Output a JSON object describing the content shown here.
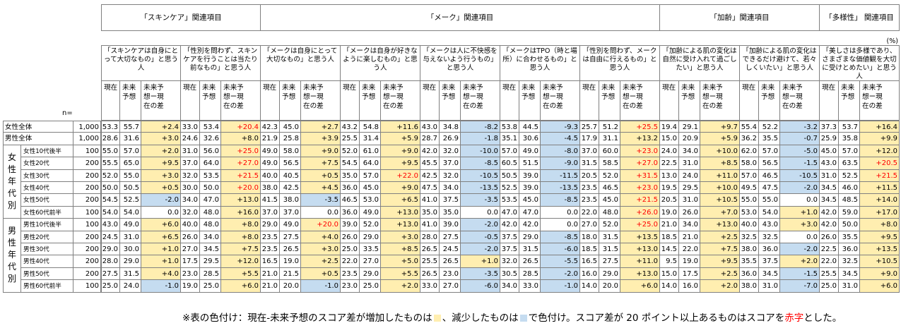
{
  "header": {
    "groups": [
      {
        "label": "「スキンケア」関連項目",
        "span": 2
      },
      {
        "label": "「メーク」関連項目",
        "span": 5
      },
      {
        "label": "「加齢」関連項目",
        "span": 2
      },
      {
        "label": "「多様性」\n関連項目",
        "span": 1
      }
    ],
    "unit_label": "(%)",
    "n_label": "n=",
    "sub_labels": [
      "現在",
      "未来\n予想",
      "未来予\n想ー現\n在の差"
    ]
  },
  "colors": {
    "increase_fill": "#ffeeb0",
    "decrease_fill": "#c5dcf0",
    "highlight_text": "#ff0000",
    "border": "#808080"
  },
  "footnote": {
    "text_before_inc": "※表の色付け：現在-未来予想のスコア差が増加したものは",
    "text_before_dec": "、減少したものは",
    "text_before_red": "で色付け。スコア差が 20 ポイント以上あるものはスコアを",
    "red_word": "赤字",
    "text_end": "とした。"
  },
  "chart_data": {
    "type": "table",
    "title": "",
    "highlight_rule": {
      "increase_color": "#ffeeb0",
      "decrease_color": "#c5dcf0",
      "red_text_threshold": 20
    },
    "items": [
      "「スキンケアは自身にとって大切なもの」と思う人",
      "「性別を問わず、スキンケアを行うことは当たり前なもの」と思う人",
      "「メークは自身にとって大切なもの」と思う人",
      "「メークは自身が好きなように楽しむもの」と思う人",
      "「メークは人に不快感を与えないよう行うもの」と思う人",
      "「メークはTPO（時と場所）に合わせるもの」と思う人",
      "「性別を問わず、メークは自由に行えるもの」と思う人",
      "「加齢による肌の変化は自然に受け入れて過ごしたい」と思う人",
      "「加齢による肌の変化はできるだけ避けて、若々しくいたい」と思う人",
      "「美しさは多様であり、さまざまな価値観を大切に受けとめたい」と思う人"
    ],
    "metrics": [
      "現在",
      "未来予想",
      "未来予想ー現在の差"
    ],
    "groups": [
      {
        "label": "",
        "rows": [
          "女性全体",
          "男性全体"
        ]
      },
      {
        "label": "女性年代別",
        "rows": [
          "女性10代後半",
          "女性20代",
          "女性30代",
          "女性40代",
          "女性50代",
          "女性60代前半"
        ]
      },
      {
        "label": "男性年代別",
        "rows": [
          "男性10代後半",
          "男性20代",
          "男性30代",
          "男性40代",
          "男性50代",
          "男性60代前半"
        ]
      }
    ],
    "rows": [
      {
        "label": "女性全体",
        "n": "1,000",
        "values": [
          [
            53.3,
            55.7,
            2.4
          ],
          [
            33.0,
            53.4,
            20.4
          ],
          [
            42.3,
            45.0,
            2.7
          ],
          [
            43.2,
            54.8,
            11.6
          ],
          [
            43.0,
            34.8,
            -8.2
          ],
          [
            53.8,
            44.5,
            -9.3
          ],
          [
            25.7,
            51.2,
            25.5
          ],
          [
            19.4,
            29.1,
            9.7
          ],
          [
            55.4,
            52.2,
            -3.2
          ],
          [
            37.3,
            53.7,
            16.4
          ]
        ]
      },
      {
        "label": "男性全体",
        "n": "1,000",
        "values": [
          [
            28.6,
            31.6,
            3.0
          ],
          [
            24.6,
            32.6,
            8.0
          ],
          [
            21.9,
            25.8,
            3.9
          ],
          [
            25.5,
            31.4,
            5.9
          ],
          [
            28.7,
            26.9,
            -1.8
          ],
          [
            35.1,
            30.6,
            -4.5
          ],
          [
            17.9,
            31.1,
            13.2
          ],
          [
            15.0,
            20.9,
            5.9
          ],
          [
            36.2,
            35.5,
            -0.7
          ],
          [
            25.9,
            35.8,
            9.9
          ]
        ]
      },
      {
        "label": "女性10代後半",
        "n": "100",
        "values": [
          [
            55.0,
            57.0,
            2.0
          ],
          [
            31.0,
            56.0,
            25.0
          ],
          [
            49.0,
            58.0,
            9.0
          ],
          [
            52.0,
            61.0,
            9.0
          ],
          [
            42.0,
            32.0,
            -10.0
          ],
          [
            57.0,
            49.0,
            -8.0
          ],
          [
            37.0,
            60.0,
            23.0
          ],
          [
            24.0,
            34.0,
            10.0
          ],
          [
            62.0,
            57.0,
            -5.0
          ],
          [
            45.0,
            57.0,
            12.0
          ]
        ]
      },
      {
        "label": "女性20代",
        "n": "200",
        "values": [
          [
            55.5,
            65.0,
            9.5
          ],
          [
            37.0,
            64.0,
            27.0
          ],
          [
            49.0,
            56.5,
            7.5
          ],
          [
            54.5,
            64.0,
            9.5
          ],
          [
            45.5,
            37.0,
            -8.5
          ],
          [
            60.5,
            51.5,
            -9.0
          ],
          [
            31.5,
            58.5,
            27.0
          ],
          [
            22.5,
            31.0,
            8.5
          ],
          [
            58.0,
            56.5,
            -1.5
          ],
          [
            43.0,
            63.5,
            20.5
          ]
        ]
      },
      {
        "label": "女性30代",
        "n": "200",
        "values": [
          [
            52.0,
            55.0,
            3.0
          ],
          [
            32.0,
            53.5,
            21.5
          ],
          [
            40.0,
            40.5,
            0.5
          ],
          [
            35.0,
            57.0,
            22.0
          ],
          [
            42.5,
            32.0,
            -10.5
          ],
          [
            50.5,
            39.0,
            -11.5
          ],
          [
            20.5,
            52.0,
            31.5
          ],
          [
            13.0,
            24.0,
            11.0
          ],
          [
            57.0,
            46.5,
            -10.5
          ],
          [
            31.0,
            52.5,
            21.5
          ]
        ]
      },
      {
        "label": "女性40代",
        "n": "200",
        "values": [
          [
            50.0,
            50.5,
            0.5
          ],
          [
            30.0,
            50.0,
            20.0
          ],
          [
            38.0,
            42.5,
            4.5
          ],
          [
            36.0,
            45.0,
            9.0
          ],
          [
            47.5,
            34.0,
            -13.5
          ],
          [
            52.5,
            39.0,
            -13.5
          ],
          [
            23.5,
            46.5,
            23.0
          ],
          [
            19.5,
            29.5,
            10.0
          ],
          [
            49.5,
            47.5,
            -2.0
          ],
          [
            34.5,
            46.0,
            11.5
          ]
        ]
      },
      {
        "label": "女性50代",
        "n": "200",
        "values": [
          [
            54.5,
            52.5,
            -2.0
          ],
          [
            34.0,
            47.0,
            13.0
          ],
          [
            41.5,
            38.0,
            -3.5
          ],
          [
            46.5,
            53.0,
            6.5
          ],
          [
            41.0,
            37.5,
            -3.5
          ],
          [
            53.5,
            45.0,
            -8.5
          ],
          [
            23.5,
            45.0,
            21.5
          ],
          [
            20.5,
            31.0,
            10.5
          ],
          [
            55.0,
            55.0,
            0.0
          ],
          [
            34.5,
            48.5,
            14.0
          ]
        ]
      },
      {
        "label": "女性60代前半",
        "n": "100",
        "values": [
          [
            54.0,
            54.0,
            0.0
          ],
          [
            32.0,
            48.0,
            16.0
          ],
          [
            37.0,
            37.0,
            0.0
          ],
          [
            36.0,
            49.0,
            13.0
          ],
          [
            35.0,
            35.0,
            0.0
          ],
          [
            47.0,
            47.0,
            0.0
          ],
          [
            22.0,
            48.0,
            26.0
          ],
          [
            19.0,
            26.0,
            7.0
          ],
          [
            53.0,
            54.0,
            1.0
          ],
          [
            42.0,
            59.0,
            17.0
          ]
        ]
      },
      {
        "label": "男性10代後半",
        "n": "100",
        "values": [
          [
            43.0,
            49.0,
            6.0
          ],
          [
            40.0,
            48.0,
            8.0
          ],
          [
            29.0,
            49.0,
            20.0
          ],
          [
            39.0,
            52.0,
            13.0
          ],
          [
            41.0,
            39.0,
            -2.0
          ],
          [
            42.0,
            42.0,
            0.0
          ],
          [
            27.0,
            52.0,
            25.0
          ],
          [
            21.0,
            34.0,
            13.0
          ],
          [
            40.0,
            43.0,
            3.0
          ],
          [
            42.0,
            50.0,
            8.0
          ]
        ]
      },
      {
        "label": "男性20代",
        "n": "200",
        "values": [
          [
            24.5,
            31.0,
            6.5
          ],
          [
            26.0,
            34.0,
            8.0
          ],
          [
            23.5,
            27.5,
            4.0
          ],
          [
            26.0,
            29.0,
            3.0
          ],
          [
            28.0,
            27.5,
            -0.5
          ],
          [
            37.5,
            29.0,
            -8.5
          ],
          [
            18.0,
            31.5,
            13.5
          ],
          [
            18.5,
            21.0,
            2.5
          ],
          [
            32.5,
            32.5,
            0.0
          ],
          [
            26.0,
            35.5,
            9.5
          ]
        ]
      },
      {
        "label": "男性30代",
        "n": "200",
        "values": [
          [
            29.0,
            30.0,
            1.0
          ],
          [
            27.0,
            34.5,
            7.5
          ],
          [
            23.5,
            26.5,
            3.0
          ],
          [
            25.0,
            33.5,
            8.5
          ],
          [
            26.5,
            24.5,
            -2.0
          ],
          [
            37.5,
            31.5,
            -6.0
          ],
          [
            18.5,
            31.5,
            13.0
          ],
          [
            14.5,
            22.0,
            7.5
          ],
          [
            38.0,
            36.0,
            -2.0
          ],
          [
            22.5,
            36.0,
            13.5
          ]
        ]
      },
      {
        "label": "男性40代",
        "n": "200",
        "values": [
          [
            28.0,
            29.0,
            1.0
          ],
          [
            17.5,
            29.5,
            12.0
          ],
          [
            16.5,
            19.0,
            2.5
          ],
          [
            22.0,
            27.0,
            5.0
          ],
          [
            25.5,
            26.5,
            1.0
          ],
          [
            32.0,
            26.5,
            -5.5
          ],
          [
            16.5,
            27.5,
            11.0
          ],
          [
            9.5,
            19.0,
            9.5
          ],
          [
            35.5,
            37.5,
            2.0
          ],
          [
            22.0,
            32.5,
            10.5
          ]
        ]
      },
      {
        "label": "男性50代",
        "n": "200",
        "values": [
          [
            27.5,
            31.5,
            4.0
          ],
          [
            23.0,
            28.5,
            5.5
          ],
          [
            21.0,
            21.5,
            0.5
          ],
          [
            23.5,
            29.0,
            5.5
          ],
          [
            26.5,
            23.0,
            -3.5
          ],
          [
            30.5,
            28.5,
            -2.0
          ],
          [
            16.0,
            29.0,
            13.0
          ],
          [
            15.0,
            17.5,
            2.5
          ],
          [
            36.0,
            34.5,
            -1.5
          ],
          [
            25.5,
            34.5,
            9.0
          ]
        ]
      },
      {
        "label": "男性60代前半",
        "n": "100",
        "values": [
          [
            25.0,
            24.0,
            -1.0
          ],
          [
            19.0,
            25.0,
            6.0
          ],
          [
            21.0,
            20.0,
            -1.0
          ],
          [
            23.0,
            25.0,
            2.0
          ],
          [
            33.0,
            27.0,
            -6.0
          ],
          [
            34.0,
            33.0,
            -1.0
          ],
          [
            14.0,
            20.0,
            6.0
          ],
          [
            14.0,
            16.0,
            2.0
          ],
          [
            38.0,
            31.0,
            -7.0
          ],
          [
            25.0,
            31.0,
            6.0
          ]
        ]
      }
    ]
  }
}
